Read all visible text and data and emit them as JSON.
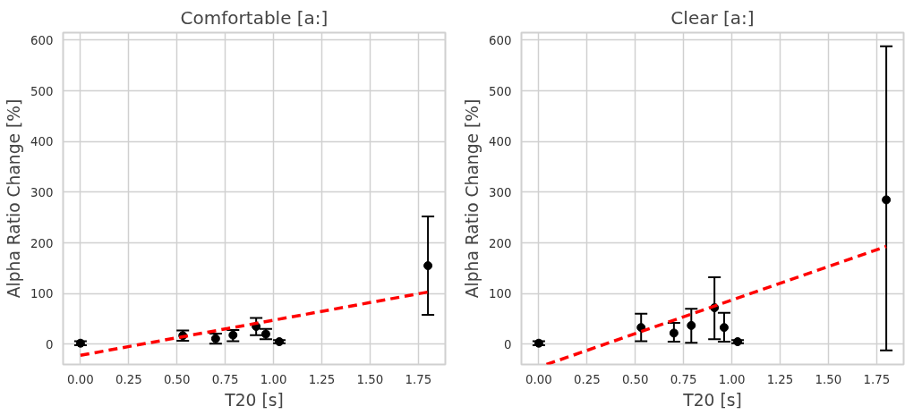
{
  "chart_data": [
    {
      "type": "scatter",
      "title": "Comfortable [a:]",
      "xlabel": "T20 [s]",
      "ylabel": "Alpha Ratio Change [%]",
      "xlim": [
        -0.09,
        1.89
      ],
      "ylim": [
        -40,
        615
      ],
      "xticks": [
        {
          "value": 0,
          "label": "0.00"
        },
        {
          "value": 0.25,
          "label": "0.25"
        },
        {
          "value": 0.5,
          "label": "0.50"
        },
        {
          "value": 0.75,
          "label": "0.75"
        },
        {
          "value": 1,
          "label": "1.00"
        },
        {
          "value": 1.25,
          "label": "1.25"
        },
        {
          "value": 1.5,
          "label": "1.50"
        },
        {
          "value": 1.75,
          "label": "1.75"
        }
      ],
      "yticks": [
        0,
        100,
        200,
        300,
        400,
        500,
        600
      ],
      "grid": true,
      "series": [
        {
          "marker": "circle",
          "color": "#000000",
          "x": [
            0.0,
            0.53,
            0.7,
            0.79,
            0.91,
            0.96,
            1.03,
            1.8
          ],
          "values": [
            2,
            17,
            11,
            18,
            35,
            20,
            5,
            155
          ],
          "errors": [
            [
              -2,
              6
            ],
            [
              7,
              27
            ],
            [
              1,
              21
            ],
            [
              6,
              28
            ],
            [
              18,
              52
            ],
            [
              10,
              30
            ],
            [
              2,
              8
            ],
            [
              58,
              252
            ]
          ]
        },
        {
          "type": "line",
          "color": "#ff0000",
          "line_style": "dashed",
          "x": [
            0.0,
            1.8
          ],
          "values": [
            -22,
            103
          ]
        }
      ]
    },
    {
      "type": "scatter",
      "title": "Clear [a:]",
      "xlabel": "T20 [s]",
      "ylabel": "Alpha Ratio Change [%]",
      "xlim": [
        -0.09,
        1.89
      ],
      "ylim": [
        -40,
        615
      ],
      "xticks": [
        {
          "value": 0,
          "label": "0.00"
        },
        {
          "value": 0.25,
          "label": "0.25"
        },
        {
          "value": 0.5,
          "label": "0.50"
        },
        {
          "value": 0.75,
          "label": "0.75"
        },
        {
          "value": 1,
          "label": "1.00"
        },
        {
          "value": 1.25,
          "label": "1.25"
        },
        {
          "value": 1.5,
          "label": "1.50"
        },
        {
          "value": 1.75,
          "label": "1.75"
        }
      ],
      "yticks": [
        0,
        100,
        200,
        300,
        400,
        500,
        600
      ],
      "grid": true,
      "series": [
        {
          "marker": "circle",
          "color": "#000000",
          "x": [
            0.0,
            0.53,
            0.7,
            0.79,
            0.91,
            0.96,
            1.03,
            1.8
          ],
          "values": [
            2,
            33,
            22,
            37,
            72,
            33,
            5,
            285
          ],
          "errors": [
            [
              -2,
              6
            ],
            [
              6,
              60
            ],
            [
              5,
              42
            ],
            [
              3,
              70
            ],
            [
              10,
              132
            ],
            [
              5,
              62
            ],
            [
              2,
              8
            ],
            [
              -12,
              588
            ]
          ]
        },
        {
          "type": "line",
          "color": "#ff0000",
          "line_style": "dashed",
          "x": [
            0.04,
            1.8
          ],
          "values": [
            -40,
            193
          ]
        }
      ]
    }
  ]
}
